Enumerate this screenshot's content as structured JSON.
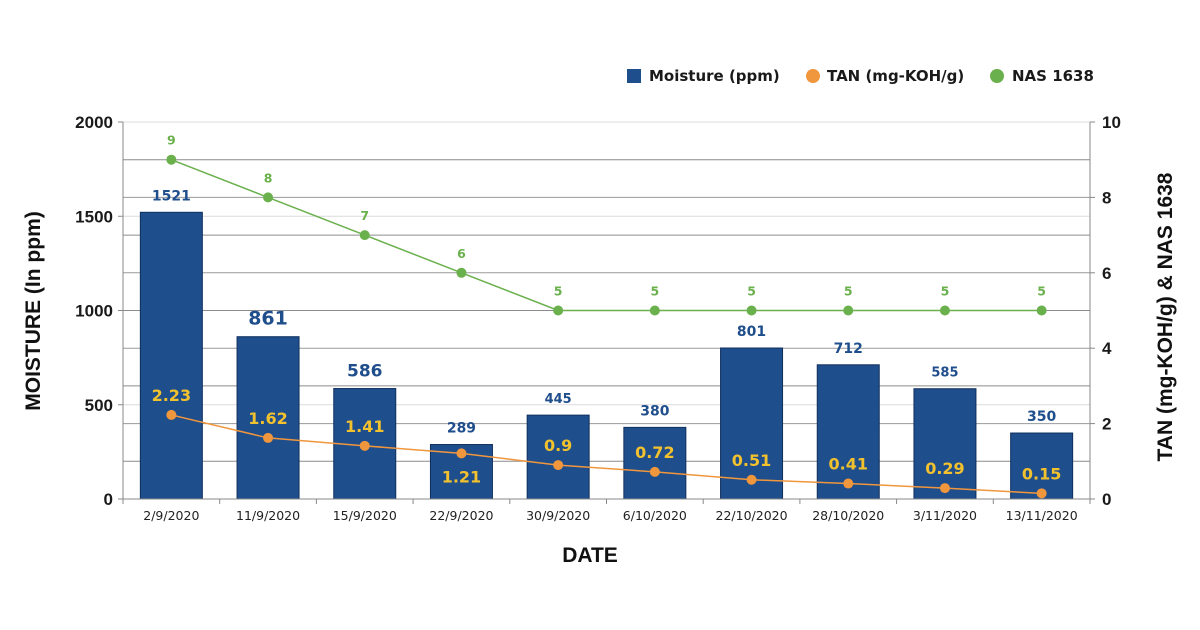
{
  "chart_data": {
    "type": "bar",
    "x_label": "DATE",
    "y_label_left": "MOISTURE (In ppm)",
    "y_label_right": "TAN (mg-KOH/g) & NAS 1638",
    "categories": [
      "2/9/2020",
      "11/9/2020",
      "15/9/2020",
      "22/9/2020",
      "30/9/2020",
      "6/10/2020",
      "22/10/2020",
      "28/10/2020",
      "3/11/2020",
      "13/11/2020"
    ],
    "y_left_range": [
      0,
      2000
    ],
    "y_left_ticks": [
      "0",
      "500",
      "1000",
      "1500",
      "2000"
    ],
    "y_right_range": [
      0,
      10
    ],
    "y_right_ticks": [
      "0",
      "2",
      "4",
      "6",
      "8",
      "10"
    ],
    "legend_position": "top-right",
    "grid": true,
    "series": [
      {
        "name": "Moisture (ppm)",
        "type": "bar",
        "axis": "left",
        "color": "#1f4e8c",
        "values": [
          1521,
          861,
          586,
          289,
          445,
          380,
          801,
          712,
          585,
          350
        ],
        "labels": [
          "1521",
          "861",
          "586",
          "289",
          "445",
          "380",
          "801",
          "712",
          "585",
          "350"
        ]
      },
      {
        "name": "TAN (mg-KOH/g)",
        "type": "line",
        "axis": "right",
        "color": "#f0963c",
        "label_color": "#f2c12e",
        "values": [
          2.23,
          1.62,
          1.41,
          1.21,
          0.9,
          0.72,
          0.51,
          0.41,
          0.29,
          0.15
        ],
        "labels": [
          "2.23",
          "1.62",
          "1.41",
          "1.21",
          "0.9",
          "0.72",
          "0.51",
          "0.41",
          "0.29",
          "0.15"
        ]
      },
      {
        "name": "NAS 1638",
        "type": "line",
        "axis": "right",
        "color": "#6ab04c",
        "values": [
          9,
          8,
          7,
          6,
          5,
          5,
          5,
          5,
          5,
          5
        ],
        "labels": [
          "9",
          "8",
          "7",
          "6",
          "5",
          "5",
          "5",
          "5",
          "5",
          "5"
        ]
      }
    ]
  }
}
